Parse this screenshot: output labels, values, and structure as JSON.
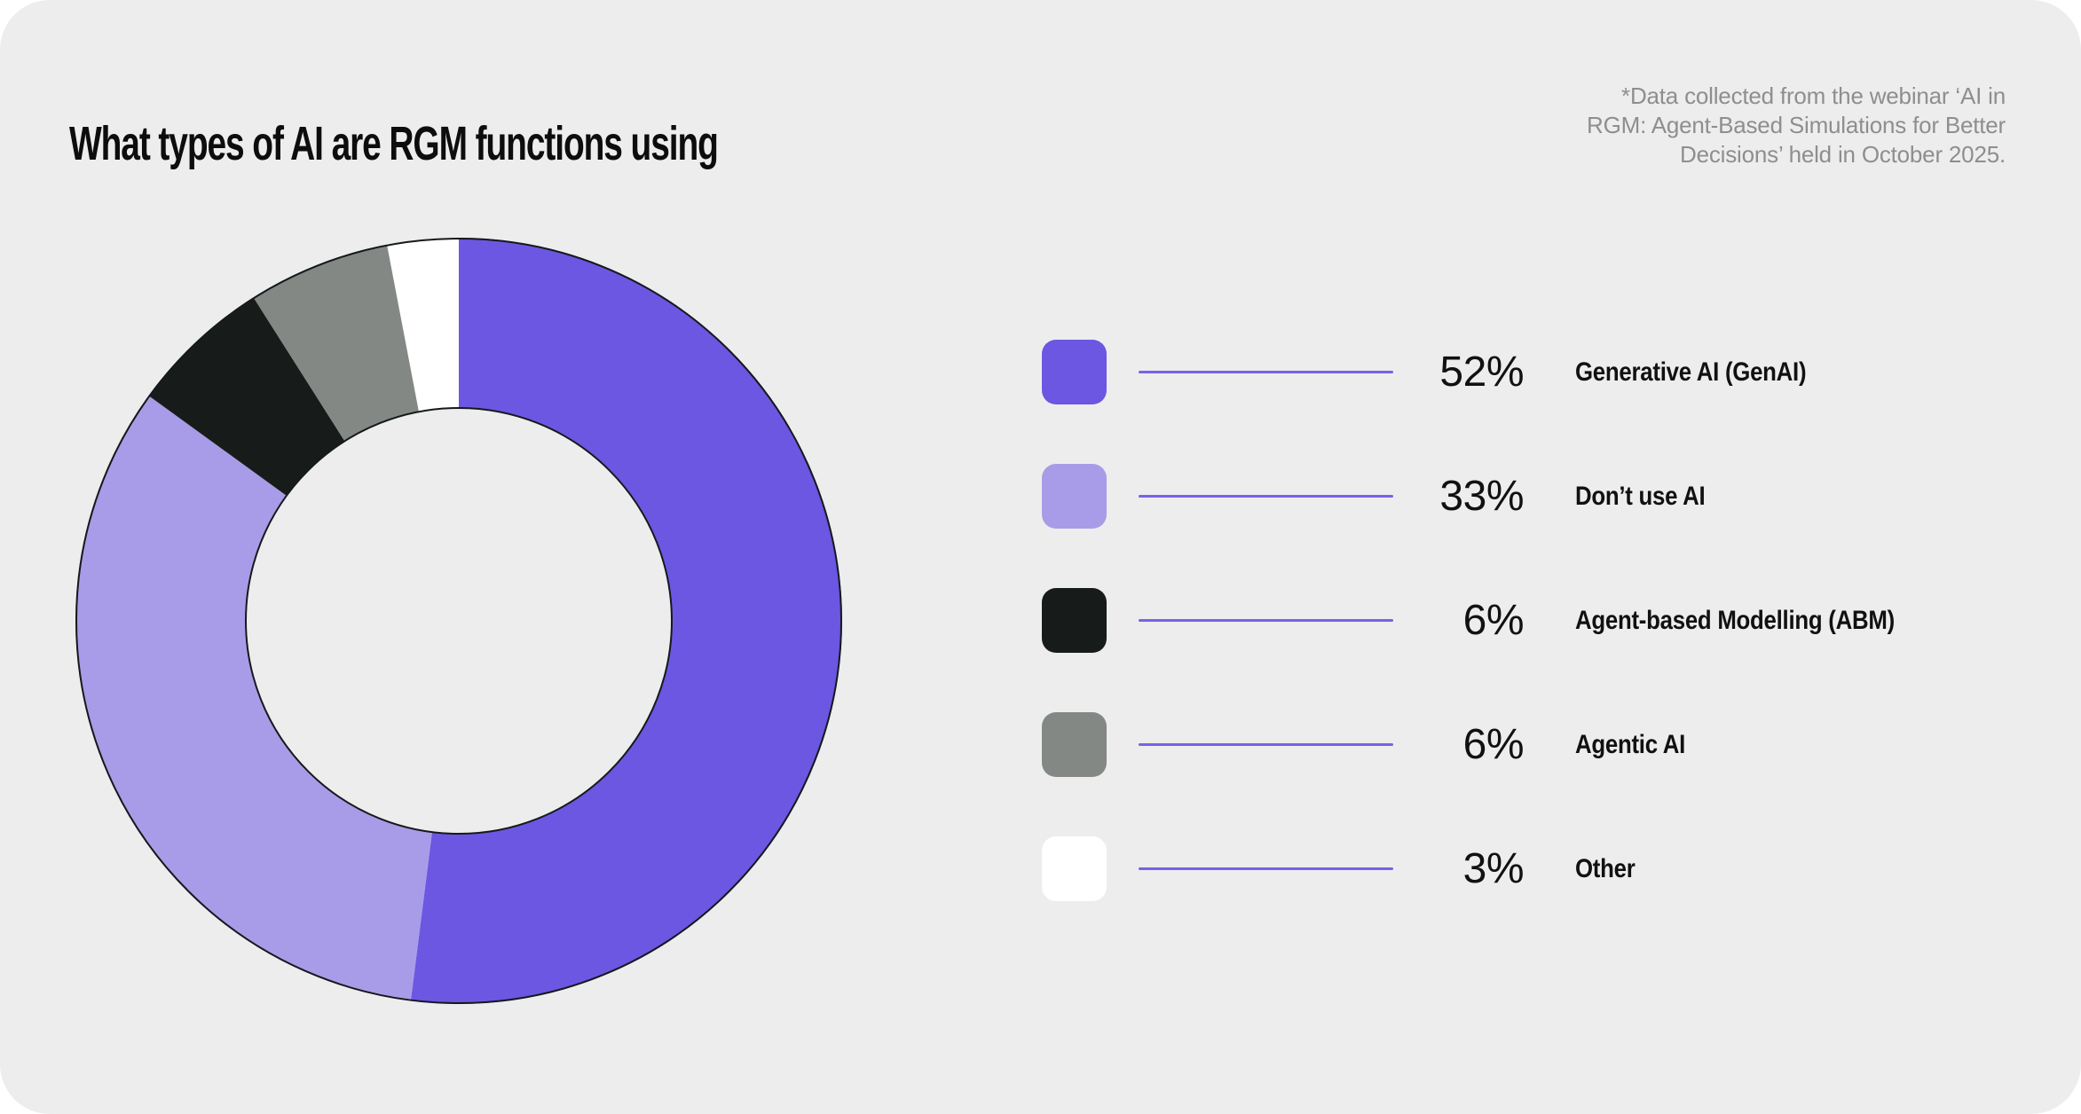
{
  "page": {
    "title": "What types of AI are RGM functions using",
    "card_background": "#EDEDED",
    "outer_background": "#FFFFFF"
  },
  "note": {
    "line1": "*Data collected from the webinar ‘AI in",
    "line2": "RGM: Agent-Based Simulations for Better",
    "line3": "Decisions’ held in October 2025.",
    "color": "#8E8E8E"
  },
  "chart_data": {
    "type": "pie",
    "subtype": "donut",
    "title": "What types of AI are RGM functions using",
    "categories": [
      "Generative AI (GenAI)",
      "Don’t use AI",
      "Agent-based Modelling (ABM)",
      "Agentic AI",
      "Other"
    ],
    "values": [
      52,
      33,
      6,
      6,
      3
    ],
    "unit": "%",
    "colors": [
      "#6B57E2",
      "#A89CE8",
      "#171C1B",
      "#838885",
      "#FFFFFF"
    ],
    "start_angle": "12-o-clock",
    "direction": "clockwise",
    "outer_radius_px": 432,
    "inner_radius_px": 240,
    "ring_stroke_color": "#15191B",
    "legend_position": "right"
  },
  "legend": {
    "connector_color": "#7B5FE8",
    "items": [
      {
        "pct": "52%",
        "label": "Generative AI (GenAI)",
        "color": "#6B57E2"
      },
      {
        "pct": "33%",
        "label": "Don’t use AI",
        "color": "#A89CE8"
      },
      {
        "pct": "6%",
        "label": "Agent-based Modelling (ABM)",
        "color": "#171C1B"
      },
      {
        "pct": "6%",
        "label": "Agentic AI",
        "color": "#838885"
      },
      {
        "pct": "3%",
        "label": "Other",
        "color": "#FFFFFF"
      }
    ]
  }
}
